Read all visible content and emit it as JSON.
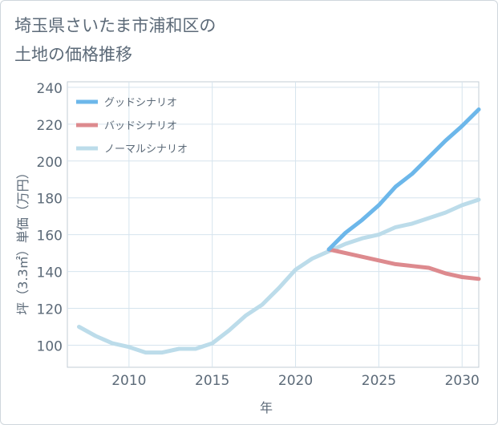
{
  "page": {
    "title_line1": "埼玉県さいたま市浦和区の",
    "title_line2": "土地の価格推移"
  },
  "chart_data": {
    "type": "line",
    "title": "埼玉県さいたま市浦和区の土地の価格推移",
    "xlabel": "年",
    "ylabel": "坪（3.3㎡）単価（万円）",
    "xlim": [
      2006.3,
      2031
    ],
    "ylim": [
      88,
      243
    ],
    "xticks": [
      2010,
      2015,
      2020,
      2025,
      2030
    ],
    "yticks": [
      100,
      120,
      140,
      160,
      180,
      200,
      220,
      240
    ],
    "grid": true,
    "legend_position": "top-left",
    "series": [
      {
        "name": "グッドシナリオ",
        "color": "#6cb7ea",
        "x": [
          2022,
          2023,
          2024,
          2025,
          2026,
          2027,
          2028,
          2029,
          2030,
          2031
        ],
        "values": [
          152,
          161,
          168,
          176,
          186,
          193,
          202,
          211,
          219,
          228
        ]
      },
      {
        "name": "バッドシナリオ",
        "color": "#dd8a8e",
        "x": [
          2022,
          2023,
          2024,
          2025,
          2026,
          2027,
          2028,
          2029,
          2030,
          2031
        ],
        "values": [
          152,
          150,
          148,
          146,
          144,
          143,
          142,
          139,
          137,
          136
        ]
      },
      {
        "name": "ノーマルシナリオ",
        "color": "#bcdcea",
        "x": [
          2007,
          2008,
          2009,
          2010,
          2011,
          2012,
          2013,
          2014,
          2015,
          2016,
          2017,
          2018,
          2019,
          2020,
          2021,
          2022,
          2023,
          2024,
          2025,
          2026,
          2027,
          2028,
          2029,
          2030,
          2031
        ],
        "values": [
          110,
          105,
          101,
          99,
          96,
          96,
          98,
          98,
          101,
          108,
          116,
          122,
          131,
          141,
          147,
          151,
          155,
          158,
          160,
          164,
          166,
          169,
          172,
          176,
          179
        ]
      }
    ]
  }
}
